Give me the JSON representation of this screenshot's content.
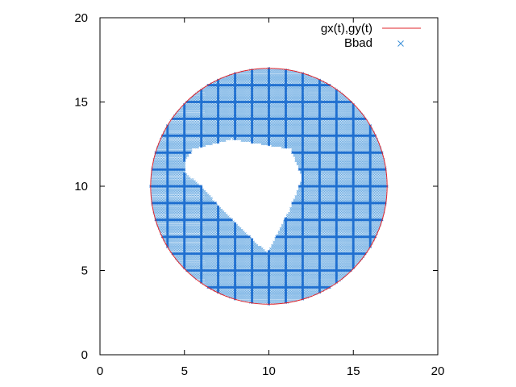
{
  "chart_data": {
    "type": "scatter",
    "xlim": [
      0,
      20
    ],
    "ylim": [
      0,
      20
    ],
    "xticks": [
      0,
      5,
      10,
      15,
      20
    ],
    "yticks": [
      0,
      5,
      10,
      15,
      20
    ],
    "grid": false,
    "legend_position": "top-right",
    "series": [
      {
        "name": "gx(t),gy(t)",
        "kind": "line",
        "color": "#e0242b",
        "shape": "circle",
        "center": [
          10,
          10
        ],
        "radius": 7
      },
      {
        "name": "Bbad",
        "kind": "points",
        "marker": "x",
        "color": "#3b8fd8",
        "grid_step": 0.1,
        "dense_lines_every": 1,
        "region": "disk minus polygon hole",
        "hole_polygon": [
          [
            5.0,
            11.5
          ],
          [
            5.5,
            12.2
          ],
          [
            7.8,
            12.8
          ],
          [
            11.3,
            12.2
          ],
          [
            12.0,
            10.5
          ],
          [
            11.2,
            8.5
          ],
          [
            9.9,
            6.0
          ],
          [
            9.5,
            6.4
          ],
          [
            7.2,
            8.6
          ],
          [
            6.0,
            10.0
          ],
          [
            5.0,
            10.8
          ]
        ]
      }
    ]
  }
}
